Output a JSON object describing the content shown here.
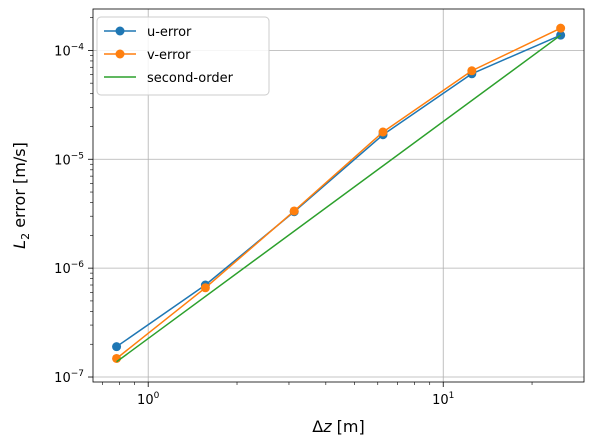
{
  "chart_data": {
    "type": "line",
    "x_scale": "log",
    "y_scale": "log",
    "xlabel": {
      "prefix": "Δ",
      "italic": "z",
      "suffix": " [m]"
    },
    "ylabel": {
      "italic": "L",
      "sub": "2",
      "suffix": " error [m/s]"
    },
    "xlim": [
      0.65,
      30
    ],
    "ylim": [
      9e-08,
      0.00024
    ],
    "x_ticks": [
      {
        "value": 1,
        "base": "10",
        "exp": "0"
      },
      {
        "value": 10,
        "base": "10",
        "exp": "1"
      }
    ],
    "y_ticks": [
      {
        "value": 1e-07,
        "base": "10",
        "exp": "−7"
      },
      {
        "value": 1e-06,
        "base": "10",
        "exp": "−6"
      },
      {
        "value": 1e-05,
        "base": "10",
        "exp": "−5"
      },
      {
        "value": 0.0001,
        "base": "10",
        "exp": "−4"
      }
    ],
    "grid": true,
    "legend_position": "top-left",
    "series": [
      {
        "name": "u-error",
        "color": "#1f77b4",
        "marker": true,
        "x": [
          0.78125,
          1.5625,
          3.125,
          6.25,
          12.5,
          25
        ],
        "y": [
          1.9e-07,
          7e-07,
          3.3e-06,
          1.68e-05,
          6.1e-05,
          0.000138
        ]
      },
      {
        "name": "v-error",
        "color": "#ff7f0e",
        "marker": true,
        "x": [
          0.78125,
          1.5625,
          3.125,
          6.25,
          12.5,
          25
        ],
        "y": [
          1.48e-07,
          6.6e-07,
          3.35e-06,
          1.78e-05,
          6.5e-05,
          0.00016
        ]
      },
      {
        "name": "second-order",
        "color": "#2ca02c",
        "marker": false,
        "x": [
          0.78125,
          25
        ],
        "y": [
          1.38e-07,
          0.000138
        ]
      }
    ]
  }
}
